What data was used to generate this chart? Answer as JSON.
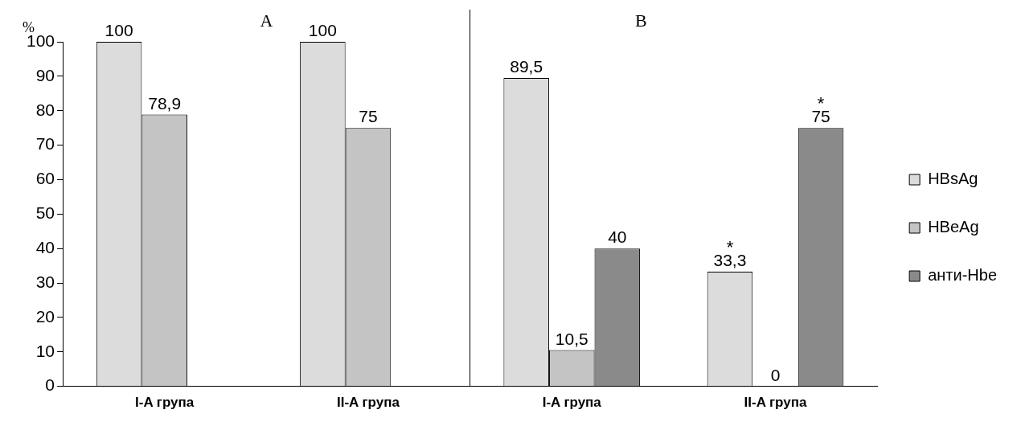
{
  "chart_data": {
    "type": "bar",
    "ylabel": "%",
    "categories": [
      "I-A група",
      "II-A група",
      "I-A група",
      "II-A група"
    ],
    "series": [
      {
        "name": "HBsAg",
        "color": "#dcdcdc",
        "values": [
          100,
          100,
          89.5,
          33.3
        ],
        "value_labels": [
          "100",
          "100",
          "89,5",
          "33,3"
        ]
      },
      {
        "name": "HBeAg",
        "color": "#c4c4c4",
        "values": [
          78.9,
          75,
          10.5,
          0
        ],
        "value_labels": [
          "78,9",
          "75",
          "10,5",
          "0"
        ]
      },
      {
        "name": "анти-Hbe",
        "color": "#8a8a8a",
        "values": [
          null,
          null,
          40,
          75
        ],
        "value_labels": [
          null,
          null,
          "40",
          "75"
        ]
      }
    ],
    "ylim": [
      0,
      100
    ],
    "yticks": [
      0,
      10,
      20,
      30,
      40,
      50,
      60,
      70,
      80,
      90,
      100
    ],
    "grid": false,
    "legend": "right",
    "annotations": [
      "A",
      "B",
      "*",
      "*"
    ]
  }
}
